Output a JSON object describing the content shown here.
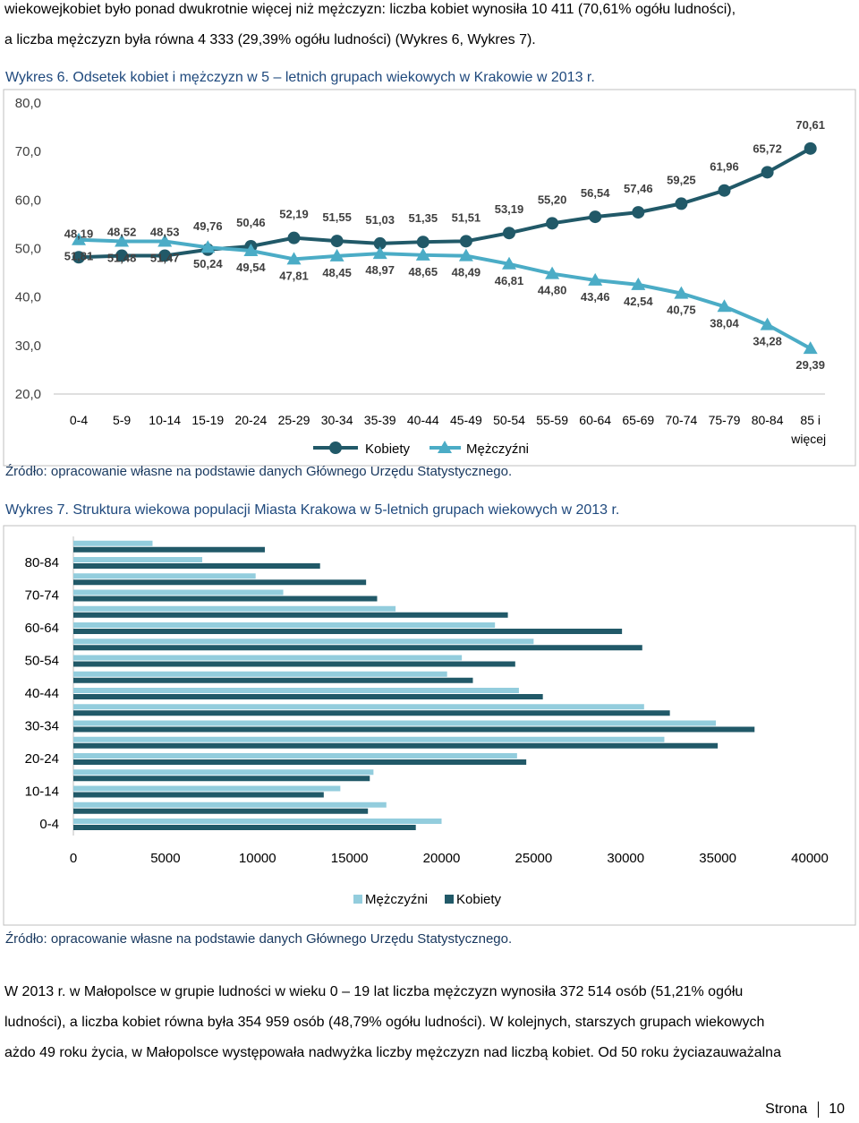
{
  "intro_paragraph": {
    "line1": "wiekowejkobiet było ponad dwukrotnie więcej niż mężczyzn: liczba kobiet wynosiła 10 411 (70,61% ogółu ludności),",
    "line2": "a liczba mężczyzn była równa 4 333 (29,39% ogółu ludności) (Wykres 6, Wykres 7)."
  },
  "figure6": {
    "caption": "Wykres 6. Odsetek kobiet i mężczyzn w 5 – letnich grupach wiekowych w Krakowie w 2013 r.",
    "source": "Źródło: opracowanie własne na podstawie danych Głównego Urzędu Statystycznego."
  },
  "figure7": {
    "caption": "Wykres 7. Struktura wiekowa populacji Miasta Krakowa w 5-letnich grupach wiekowych w 2013 r.",
    "source": "Źródło: opracowanie własne na podstawie danych Głównego Urzędu Statystycznego."
  },
  "closing_paragraph": {
    "line1": "W 2013 r. w Małopolsce w grupie ludności w wieku 0 – 19 lat liczba mężczyzn wynosiła 372 514 osób (51,21% ogółu",
    "line2": "ludności), a liczba kobiet równa była 354 959 osób (48,79% ogółu ludności). W kolejnych, starszych grupach wiekowych",
    "line3": "ażdo 49 roku życia, w Małopolsce występowała nadwyżka liczby mężczyzn nad liczbą kobiet. Od 50 roku życiazauważalna"
  },
  "footer": {
    "label": "Strona",
    "page": "10"
  },
  "colors": {
    "women": "#215968",
    "men": "#4bacc6",
    "men_bar": "#93cddd",
    "women_bar": "#215968"
  },
  "chart_data": [
    {
      "type": "line",
      "title": "Odsetek kobiet i mężczyzn w 5 – letnich grupach wiekowych w Krakowie w 2013 r.",
      "categories": [
        "0-4",
        "5-9",
        "10-14",
        "15-19",
        "20-24",
        "25-29",
        "30-34",
        "35-39",
        "40-44",
        "45-49",
        "50-54",
        "55-59",
        "60-64",
        "65-69",
        "70-74",
        "75-79",
        "80-84",
        "85 i więcej"
      ],
      "series": [
        {
          "name": "Kobiety",
          "marker": "circle",
          "values": [
            48.19,
            48.52,
            48.53,
            49.76,
            50.46,
            52.19,
            51.55,
            51.03,
            51.35,
            51.51,
            53.19,
            55.2,
            56.54,
            57.46,
            59.25,
            61.96,
            65.72,
            70.61
          ],
          "labels": [
            "48,19",
            "48,52",
            "48,53",
            "49,76",
            "50,46",
            "52,19",
            "51,55",
            "51,03",
            "51,35",
            "51,51",
            "53,19",
            "55,20",
            "56,54",
            "57,46",
            "59,25",
            "61,96",
            "65,72",
            "70,61"
          ]
        },
        {
          "name": "Mężczyźni",
          "marker": "triangle",
          "values": [
            51.81,
            51.48,
            51.47,
            50.24,
            49.54,
            47.81,
            48.45,
            48.97,
            48.65,
            48.49,
            46.81,
            44.8,
            43.46,
            42.54,
            40.75,
            38.04,
            34.28,
            29.39
          ],
          "labels": [
            "51,81",
            "51,48",
            "51,47",
            "50,24",
            "49,54",
            "47,81",
            "48,45",
            "48,97",
            "48,65",
            "48,49",
            "46,81",
            "44,80",
            "43,46",
            "42,54",
            "40,75",
            "38,04",
            "34,28",
            "29,39"
          ]
        }
      ],
      "ylim": [
        20,
        80
      ],
      "yticks": [
        "20,0",
        "30,0",
        "40,0",
        "50,0",
        "60,0",
        "70,0",
        "80,0"
      ],
      "legend": [
        "Kobiety",
        "Mężczyźni"
      ],
      "legend_position": "bottom"
    },
    {
      "type": "bar",
      "orientation": "horizontal",
      "title": "Struktura wiekowa populacji Miasta Krakowa w 5-letnich grupach wiekowych w 2013 r.",
      "categories": [
        "0-4",
        "5-9",
        "10-14",
        "15-19",
        "20-24",
        "25-29",
        "30-34",
        "35-39",
        "40-44",
        "45-49",
        "50-54",
        "55-59",
        "60-64",
        "65-69",
        "70-74",
        "75-79",
        "80-84",
        "85 i więcej"
      ],
      "category_labels_shown": [
        "0-4",
        "10-14",
        "20-24",
        "30-34",
        "40-44",
        "50-54",
        "60-64",
        "70-74",
        "80-84"
      ],
      "series": [
        {
          "name": "Mężczyźni",
          "values": [
            20000,
            17000,
            14500,
            16300,
            24100,
            32100,
            34900,
            31000,
            24200,
            20300,
            21100,
            25000,
            22900,
            17500,
            11400,
            9900,
            7000,
            4300
          ]
        },
        {
          "name": "Kobiety",
          "values": [
            18600,
            16000,
            13600,
            16100,
            24600,
            35000,
            37000,
            32400,
            25500,
            21700,
            24000,
            30900,
            29800,
            23600,
            16500,
            15900,
            13400,
            10400
          ]
        }
      ],
      "xlim": [
        0,
        40000
      ],
      "xticks": [
        "0",
        "5000",
        "10000",
        "15000",
        "20000",
        "25000",
        "30000",
        "35000",
        "40000"
      ],
      "legend": [
        "Mężczyźni",
        "Kobiety"
      ],
      "legend_position": "bottom"
    }
  ]
}
